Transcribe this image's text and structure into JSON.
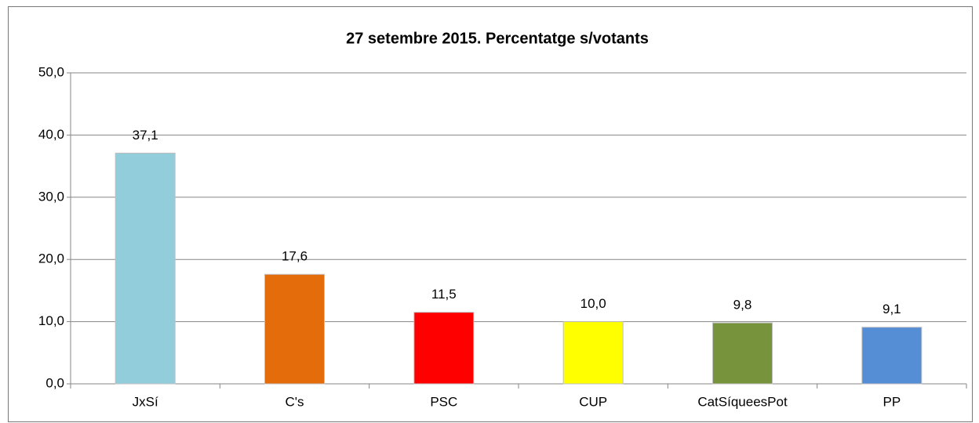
{
  "chart_data": {
    "type": "bar",
    "title": "27 setembre 2015. Percentatge  s/votants",
    "categories": [
      "JxSí",
      "C's",
      "PSC",
      "CUP",
      "CatSíqueesPot",
      "PP"
    ],
    "values": [
      37.1,
      17.6,
      11.5,
      10.0,
      9.8,
      9.1
    ],
    "value_labels": [
      "37,1",
      "17,6",
      "11,5",
      "10,0",
      "9,8",
      "9,1"
    ],
    "colors": [
      "#92cddc",
      "#e46c0a",
      "#ff0000",
      "#ffff00",
      "#77933c",
      "#558ed5"
    ],
    "ylim": [
      0,
      50
    ],
    "yticks": [
      {
        "value": 0,
        "label": "0,0"
      },
      {
        "value": 10,
        "label": "10,0"
      },
      {
        "value": 20,
        "label": "20,0"
      },
      {
        "value": 30,
        "label": "30,0"
      },
      {
        "value": 40,
        "label": "40,0"
      },
      {
        "value": 50,
        "label": "50,0"
      }
    ],
    "grid": true
  }
}
